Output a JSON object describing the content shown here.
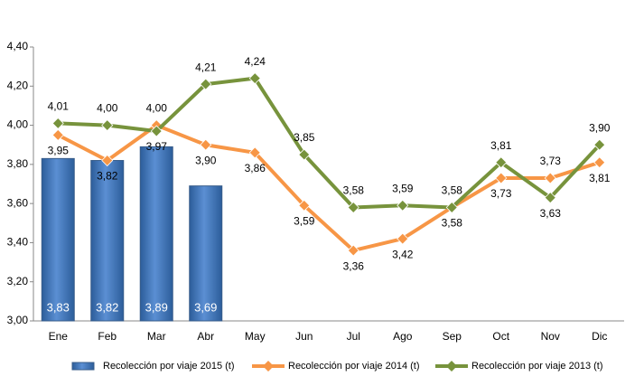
{
  "chart_data": {
    "type": "combo",
    "categories": [
      "Ene",
      "Feb",
      "Mar",
      "Abr",
      "May",
      "Jun",
      "Jul",
      "Ago",
      "Sep",
      "Oct",
      "Nov",
      "Dic"
    ],
    "ylim": [
      3.0,
      4.4
    ],
    "yticks": [
      {
        "value": 3.0,
        "label": "3,00"
      },
      {
        "value": 3.2,
        "label": "3,20"
      },
      {
        "value": 3.4,
        "label": "3,40"
      },
      {
        "value": 3.6,
        "label": "3,60"
      },
      {
        "value": 3.8,
        "label": "3,80"
      },
      {
        "value": 4.0,
        "label": "4,00"
      },
      {
        "value": 4.2,
        "label": "4,20"
      },
      {
        "value": 4.4,
        "label": "4,40"
      }
    ],
    "grid": false,
    "legend": "bottom",
    "series": [
      {
        "name": "Recolección por viaje 2015 (t)",
        "type": "bar",
        "color": "#4f81bd",
        "values": [
          3.83,
          3.82,
          3.89,
          3.69,
          null,
          null,
          null,
          null,
          null,
          null,
          null,
          null
        ],
        "value_labels": [
          "3,83",
          "3,82",
          "3,89",
          "3,69",
          null,
          null,
          null,
          null,
          null,
          null,
          null,
          null
        ]
      },
      {
        "name": "Recolección por viaje 2014 (t)",
        "type": "line",
        "color": "#f79646",
        "values": [
          3.95,
          3.82,
          4.0,
          3.9,
          3.86,
          3.59,
          3.36,
          3.42,
          3.58,
          3.73,
          3.73,
          3.81
        ],
        "value_labels": [
          "3,95",
          "3,82",
          "4,00",
          "3,90",
          "3,86",
          "3,59",
          "3,36",
          "3,42",
          "3,58",
          "3,73",
          "3,73",
          "3,81"
        ]
      },
      {
        "name": "Recolección por viaje 2013 (t)",
        "type": "line",
        "color": "#77933c",
        "values": [
          4.01,
          4.0,
          3.97,
          4.21,
          4.24,
          3.85,
          3.58,
          3.59,
          3.58,
          3.81,
          3.63,
          3.9
        ],
        "value_labels": [
          "4,01",
          "4,00",
          "3,97",
          "4,21",
          "4,24",
          "3,85",
          "3,58",
          "3,59",
          "3,58",
          "3,81",
          "3,63",
          "3,90"
        ]
      }
    ]
  }
}
